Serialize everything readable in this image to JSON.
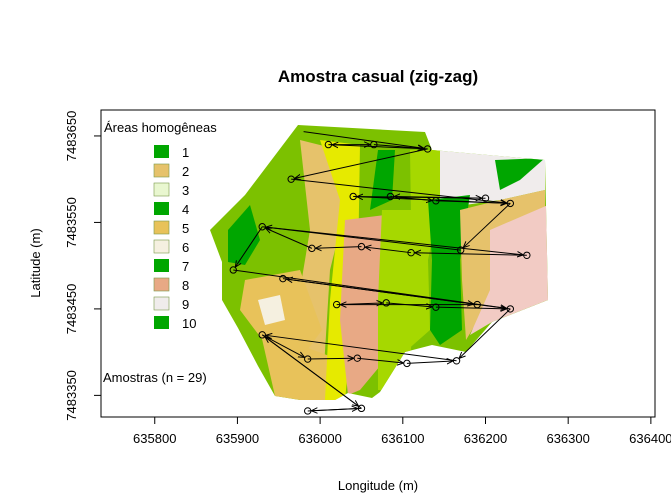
{
  "title": "Amostra casual (zig-zag)",
  "xlabel": "Longitude (m)",
  "ylabel": "Latitude (m)",
  "x_ticks": [
    "635800",
    "635900",
    "636000",
    "636100",
    "636200",
    "636300",
    "636400"
  ],
  "y_ticks": [
    "7483350",
    "7483450",
    "7483550",
    "7483650"
  ],
  "legend": {
    "title": "Áreas homogêneas",
    "classes": [
      {
        "label": "1",
        "color": "#00A600"
      },
      {
        "label": "2",
        "color": "#E6C26B"
      },
      {
        "label": "3",
        "color": "#E9F7D0"
      },
      {
        "label": "4",
        "color": "#00A600"
      },
      {
        "label": "5",
        "color": "#E8C25A"
      },
      {
        "label": "6",
        "color": "#F5F0E0"
      },
      {
        "label": "7",
        "color": "#00A600"
      },
      {
        "label": "8",
        "color": "#E8A985"
      },
      {
        "label": "9",
        "color": "#F0ECEC"
      },
      {
        "label": "10",
        "color": "#00A600"
      }
    ]
  },
  "samples_label": "Amostras (n = 29)",
  "chart_data": {
    "type": "scatter",
    "xlim": [
      635735,
      636405
    ],
    "ylim": [
      7483325,
      7483680
    ],
    "samples": [
      [
        636010,
        7483640
      ],
      [
        636065,
        7483640
      ],
      [
        636130,
        7483635
      ],
      [
        635965,
        7483600
      ],
      [
        636040,
        7483580
      ],
      [
        636085,
        7483580
      ],
      [
        636140,
        7483575
      ],
      [
        636200,
        7483578
      ],
      [
        636230,
        7483572
      ],
      [
        635930,
        7483545
      ],
      [
        635990,
        7483520
      ],
      [
        636050,
        7483522
      ],
      [
        636110,
        7483515
      ],
      [
        636170,
        7483518
      ],
      [
        636250,
        7483512
      ],
      [
        635895,
        7483495
      ],
      [
        635955,
        7483485
      ],
      [
        636020,
        7483455
      ],
      [
        636080,
        7483457
      ],
      [
        636140,
        7483452
      ],
      [
        636190,
        7483455
      ],
      [
        636230,
        7483450
      ],
      [
        635930,
        7483420
      ],
      [
        635985,
        7483392
      ],
      [
        636045,
        7483393
      ],
      [
        636105,
        7483387
      ],
      [
        636165,
        7483390
      ],
      [
        635985,
        7483332
      ],
      [
        636050,
        7483335
      ]
    ],
    "zigzag_path": [
      [
        635980,
        7483655
      ],
      [
        636130,
        7483635
      ],
      [
        636010,
        7483640
      ],
      [
        636065,
        7483640
      ],
      [
        636130,
        7483635
      ],
      [
        635965,
        7483600
      ],
      [
        636230,
        7483572
      ],
      [
        636040,
        7483580
      ],
      [
        636200,
        7483578
      ],
      [
        636085,
        7483580
      ],
      [
        636140,
        7483575
      ],
      [
        636230,
        7483572
      ],
      [
        636170,
        7483518
      ],
      [
        635930,
        7483545
      ],
      [
        636250,
        7483512
      ],
      [
        636110,
        7483515
      ],
      [
        636050,
        7483522
      ],
      [
        635990,
        7483520
      ],
      [
        635930,
        7483545
      ],
      [
        635895,
        7483495
      ],
      [
        636230,
        7483450
      ],
      [
        635955,
        7483485
      ],
      [
        636190,
        7483455
      ],
      [
        636020,
        7483455
      ],
      [
        636080,
        7483457
      ],
      [
        636140,
        7483452
      ],
      [
        636230,
        7483450
      ],
      [
        636165,
        7483390
      ],
      [
        635930,
        7483420
      ],
      [
        636050,
        7483335
      ],
      [
        635985,
        7483332
      ],
      [
        636050,
        7483335
      ],
      [
        635930,
        7483420
      ],
      [
        635985,
        7483392
      ],
      [
        636045,
        7483393
      ],
      [
        636105,
        7483387
      ],
      [
        636165,
        7483390
      ]
    ]
  }
}
